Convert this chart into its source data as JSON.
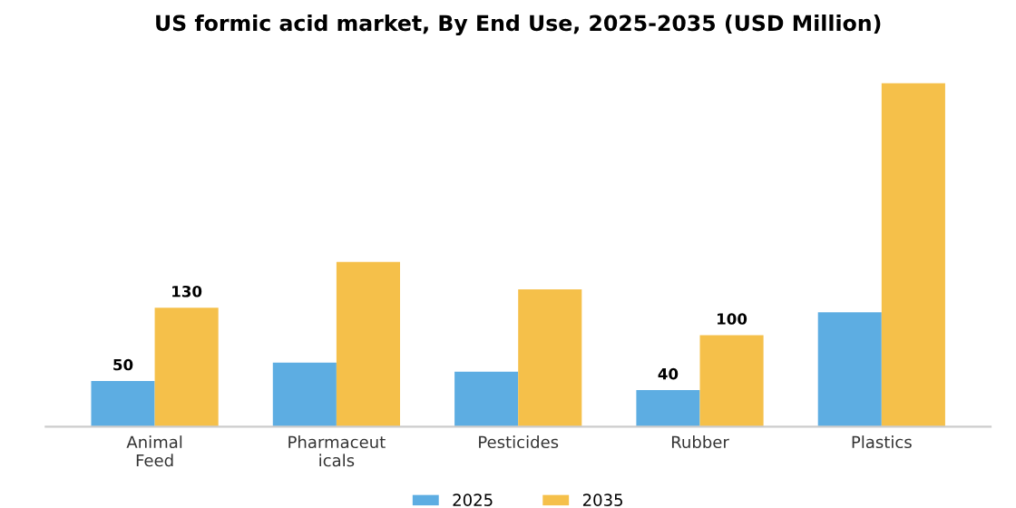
{
  "chart_data": {
    "type": "bar",
    "title": "US formic acid market, By End Use, 2025-2035 (USD Million)",
    "categories": [
      "Animal\nFeed",
      "Pharmaceut\nicals",
      "Pesticides",
      "Rubber",
      "Plastics"
    ],
    "series": [
      {
        "name": "2025",
        "color": "#5dade2",
        "values": [
          50,
          70,
          60,
          40,
          125
        ],
        "value_labels": [
          "50",
          null,
          null,
          "40",
          null
        ]
      },
      {
        "name": "2035",
        "color": "#f5c04a",
        "values": [
          130,
          180,
          150,
          100,
          375
        ],
        "value_labels": [
          "130",
          null,
          null,
          "100",
          null
        ]
      }
    ],
    "tick_labels": "x",
    "grid": false,
    "legend": "bottom"
  }
}
